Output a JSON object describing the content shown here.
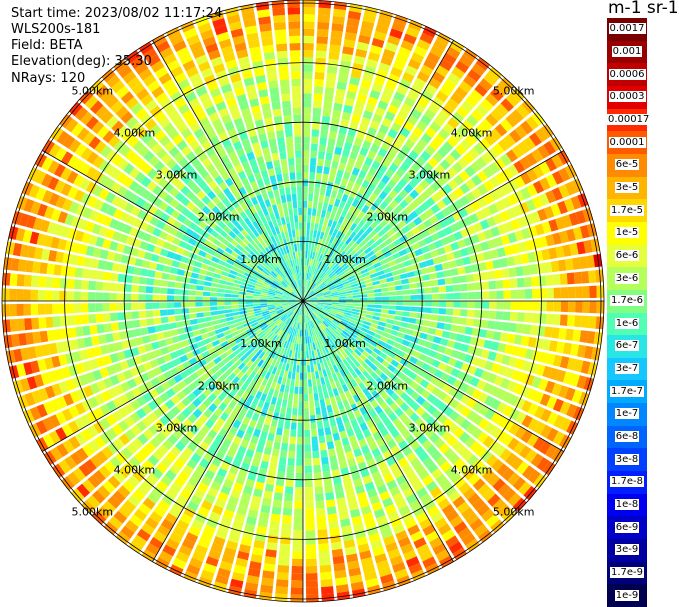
{
  "header": {
    "start_time": "Start time: 2023/08/02 11:17:24",
    "instrument": "WLS200s-181",
    "field": "Field: BETA",
    "elevation": "Elevation(deg): 35.30",
    "nrays": "NRays: 120"
  },
  "colorbar": {
    "unit": "m-1 sr-1",
    "ticks": [
      "0.0017",
      "0.001",
      "0.0006",
      "0.0003",
      "0.00017",
      "0.0001",
      "6e-5",
      "3e-5",
      "1.7e-5",
      "1e-5",
      "6e-6",
      "3e-6",
      "1.7e-6",
      "1e-6",
      "6e-7",
      "3e-7",
      "1.7e-7",
      "1e-7",
      "6e-8",
      "3e-8",
      "1.7e-8",
      "1e-8",
      "6e-9",
      "3e-9",
      "1.7e-9",
      "1e-9"
    ],
    "colors": [
      "#7a0000",
      "#9a0000",
      "#c00000",
      "#e00000",
      "#ff2a00",
      "#ff5a00",
      "#ff8c00",
      "#ffb400",
      "#ffd700",
      "#ffff00",
      "#e6ff3c",
      "#b4ff5a",
      "#82ff82",
      "#50ffb4",
      "#28e6e6",
      "#14c8ff",
      "#00aaff",
      "#0087ff",
      "#0064ff",
      "#0041ff",
      "#001eff",
      "#0000f0",
      "#0000c8",
      "#0000a0",
      "#000078",
      "#000050"
    ]
  },
  "chart_data": {
    "type": "polar-ppi",
    "title": "",
    "field": "BETA",
    "scale": "log",
    "rays": 120,
    "range_rings_km": [
      1,
      2,
      3,
      4,
      5
    ],
    "ring_labels": [
      "1.00km",
      "2.00km",
      "3.00km",
      "4.00km",
      "5.00km"
    ],
    "spoke_angles_deg": [
      0,
      30,
      60,
      90,
      120,
      150,
      180,
      210,
      240,
      270,
      300,
      330
    ],
    "max_range_km": 5.05,
    "beta_min": "1e-9",
    "beta_max": "0.0017",
    "near_field_beta": "1e-6",
    "far_field_beta_edge": "3e-5"
  }
}
